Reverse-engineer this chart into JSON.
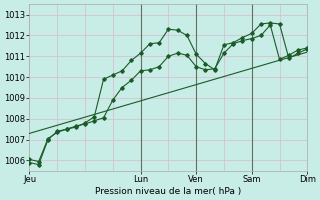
{
  "xlabel": "Pression niveau de la mer( hPa )",
  "bg_color": "#c8ece6",
  "grid_color_h": "#d8c0d0",
  "grid_color_v": "#d8c0d0",
  "line_color": "#1a5c28",
  "ylim": [
    1005.5,
    1013.5
  ],
  "yticks": [
    1006,
    1007,
    1008,
    1009,
    1010,
    1011,
    1012,
    1013
  ],
  "day_labels": [
    "Jeu",
    "",
    "Lun",
    "Ven",
    "",
    "Sam",
    "",
    "Dim"
  ],
  "xtick_labels_show": [
    "Jeu",
    "Lun",
    "Ven",
    "Sam",
    "Dim"
  ],
  "xtick_positions_show": [
    0,
    36,
    54,
    72,
    90
  ],
  "vline_positions": [
    36,
    54,
    72
  ],
  "line1_x": [
    0,
    3,
    6,
    9,
    12,
    15,
    18,
    21,
    24,
    27,
    30,
    33,
    36,
    39,
    42,
    45,
    48,
    51,
    54,
    57,
    60,
    63,
    66,
    69,
    72,
    75,
    78,
    81,
    84,
    87,
    90
  ],
  "line1_y": [
    1005.9,
    1005.8,
    1007.0,
    1007.4,
    1007.5,
    1007.6,
    1007.8,
    1008.1,
    1009.9,
    1010.1,
    1010.3,
    1010.8,
    1011.15,
    1011.6,
    1011.65,
    1012.3,
    1012.25,
    1012.0,
    1011.1,
    1010.65,
    1010.35,
    1011.55,
    1011.65,
    1011.9,
    1012.1,
    1012.55,
    1012.6,
    1012.55,
    1010.9,
    1011.15,
    1011.35
  ],
  "line2_x": [
    0,
    3,
    6,
    9,
    12,
    15,
    18,
    21,
    24,
    27,
    30,
    33,
    36,
    39,
    42,
    45,
    48,
    51,
    54,
    57,
    60,
    63,
    66,
    69,
    72,
    75,
    78,
    81,
    84,
    87,
    90
  ],
  "line2_y": [
    1006.05,
    1005.95,
    1007.05,
    1007.35,
    1007.5,
    1007.65,
    1007.75,
    1007.9,
    1008.05,
    1008.9,
    1009.5,
    1009.85,
    1010.3,
    1010.35,
    1010.5,
    1011.0,
    1011.15,
    1011.05,
    1010.5,
    1010.35,
    1010.4,
    1011.15,
    1011.6,
    1011.75,
    1011.85,
    1012.0,
    1012.5,
    1010.85,
    1011.05,
    1011.3,
    1011.4
  ],
  "trend_x": [
    0,
    90
  ],
  "trend_y": [
    1007.3,
    1011.2
  ],
  "xlim": [
    0,
    90
  ]
}
